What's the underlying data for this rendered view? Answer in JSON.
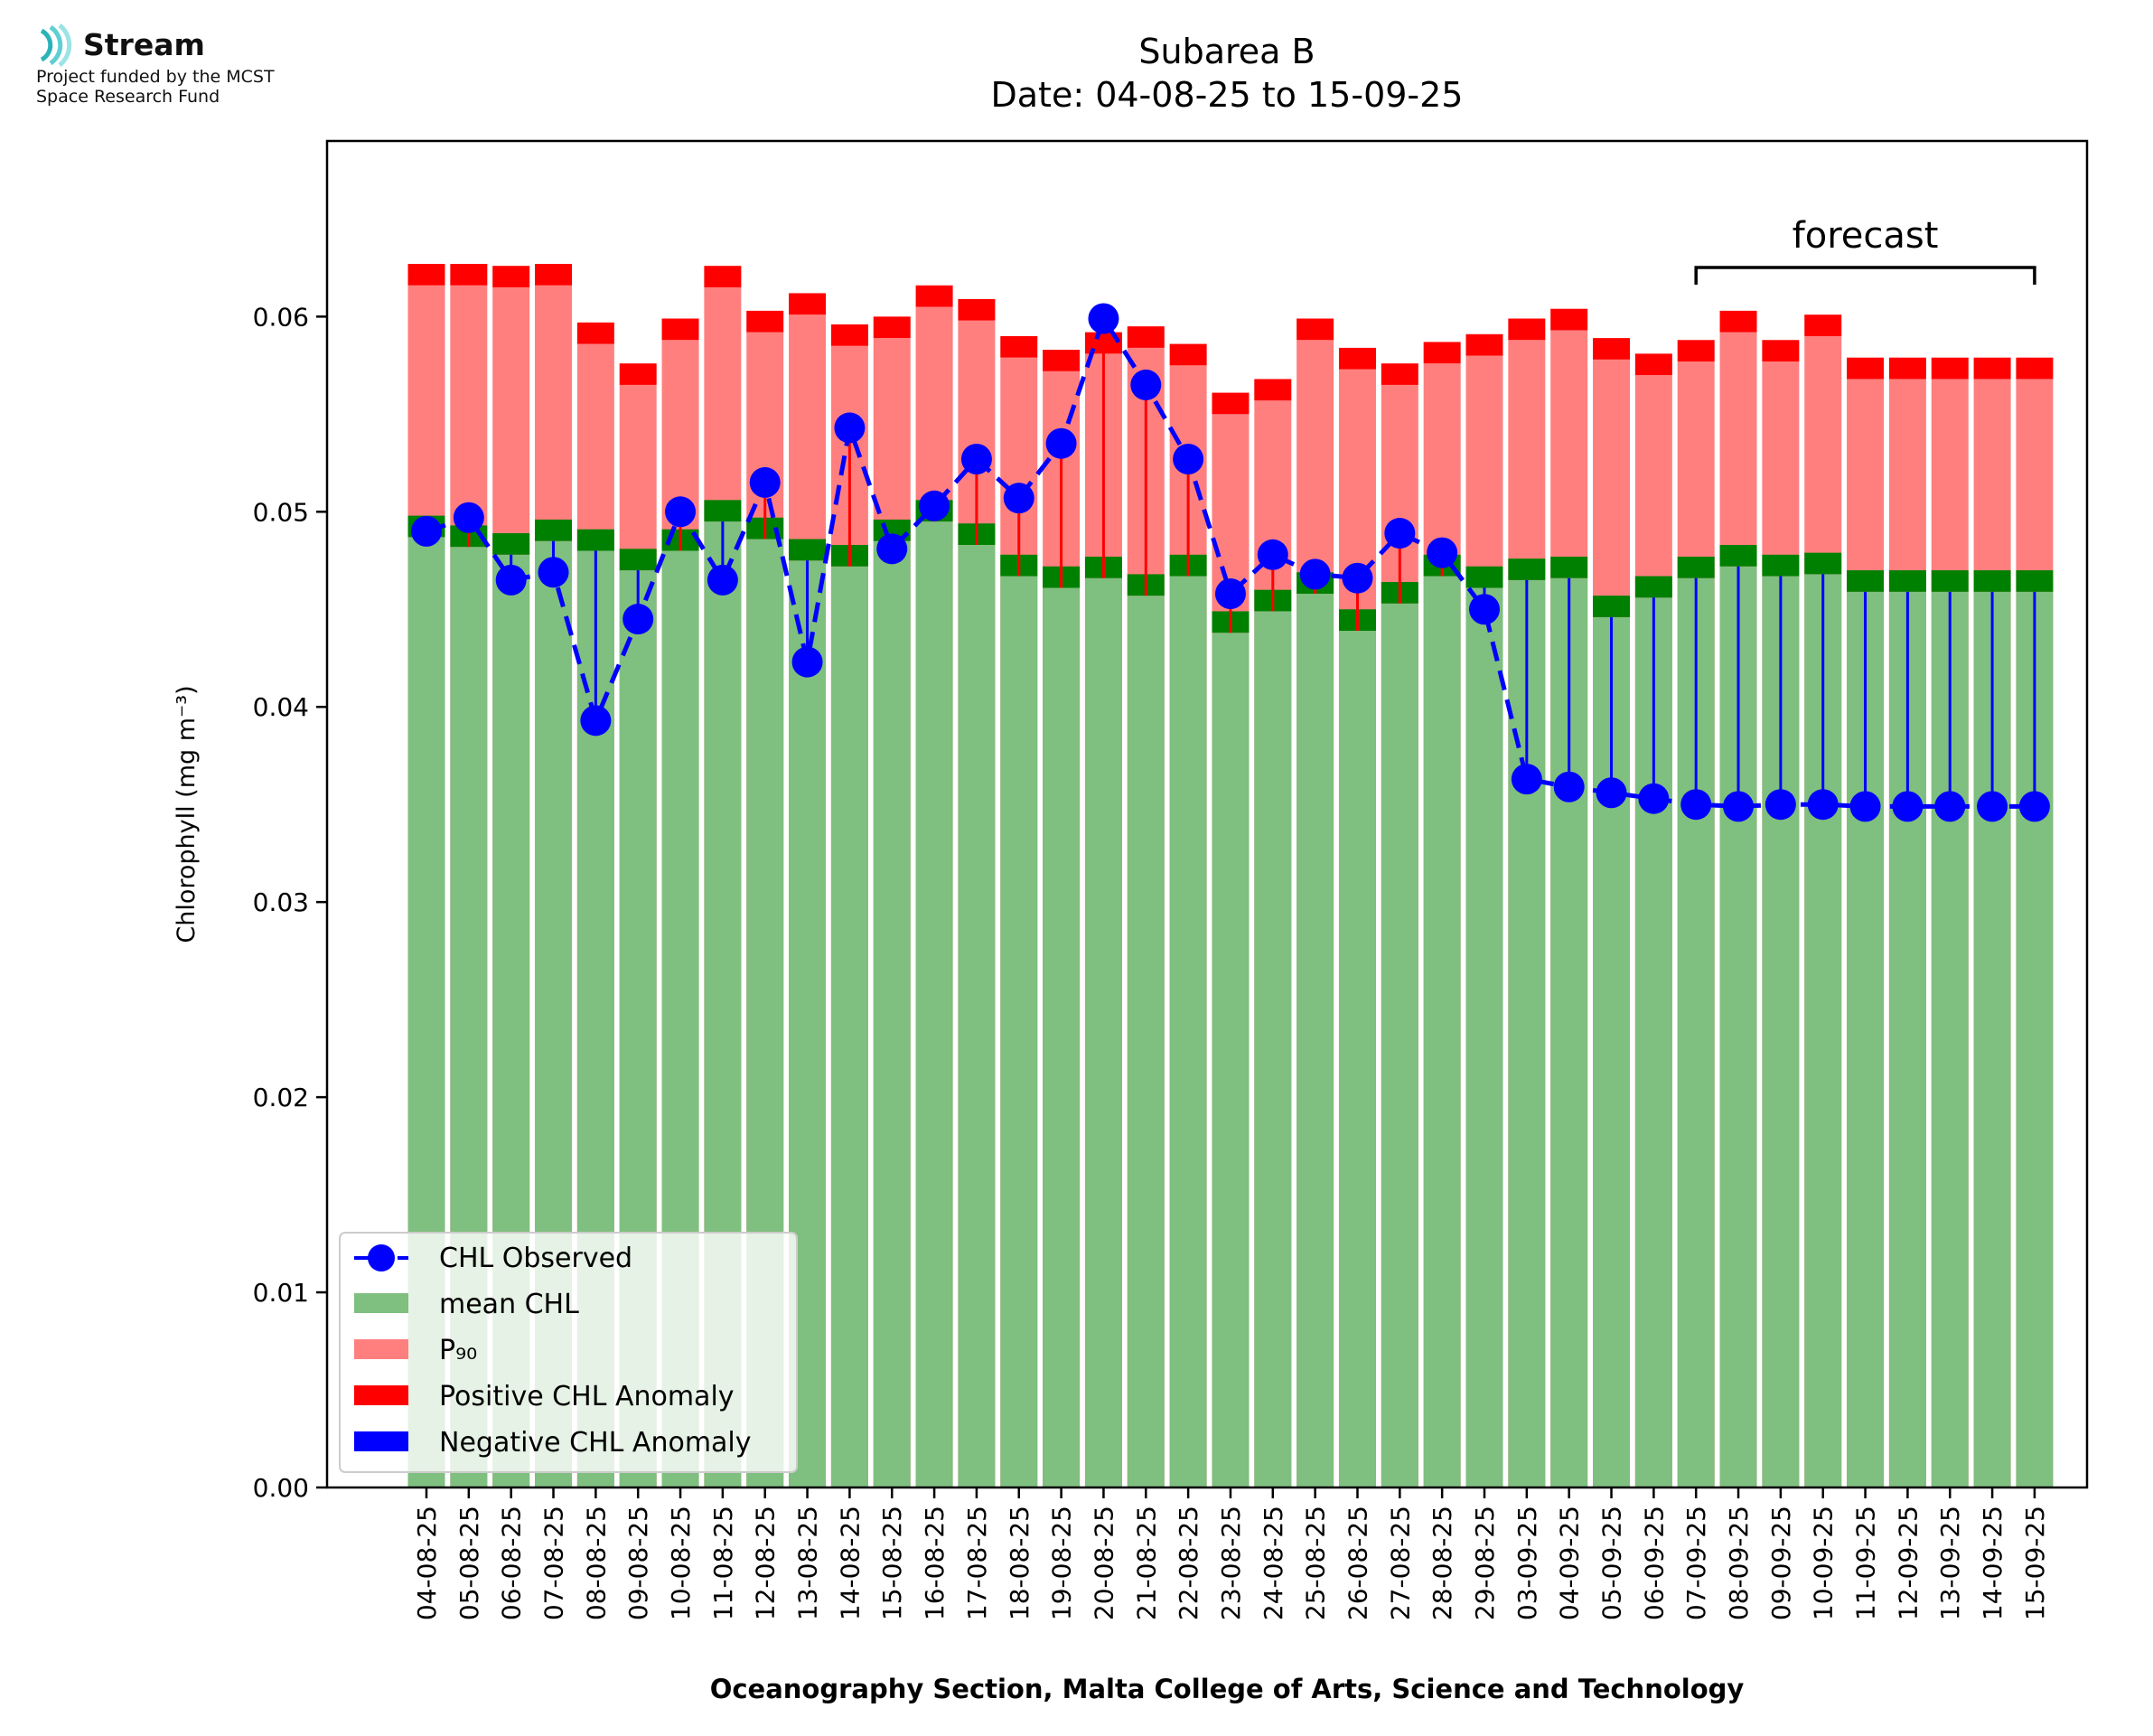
{
  "logo": {
    "name": "Stream",
    "subtitle_line1": "Project funded by the MCST",
    "subtitle_line2": "Space Research Fund"
  },
  "chart_data": {
    "type": "bar",
    "title": "Subarea B",
    "subtitle": "Date: 04-08-25 to 15-09-25",
    "xlabel": "Oceanography Section, Malta College of Arts, Science and Technology",
    "ylabel": "Chlorophyll (mg m⁻³)",
    "ylim": [
      0,
      0.069
    ],
    "yticks": [
      "0.00",
      "0.01",
      "0.02",
      "0.03",
      "0.04",
      "0.05",
      "0.06"
    ],
    "grid": false,
    "legend_position": "bottom-left",
    "forecast_label": "forecast",
    "forecast_range": [
      "07-09-25",
      "15-09-25"
    ],
    "categories": [
      "04-08-25",
      "05-08-25",
      "06-08-25",
      "07-08-25",
      "08-08-25",
      "09-08-25",
      "10-08-25",
      "11-08-25",
      "12-08-25",
      "13-08-25",
      "14-08-25",
      "15-08-25",
      "16-08-25",
      "17-08-25",
      "18-08-25",
      "19-08-25",
      "20-08-25",
      "21-08-25",
      "22-08-25",
      "23-08-25",
      "24-08-25",
      "25-08-25",
      "26-08-25",
      "27-08-25",
      "28-08-25",
      "29-08-25",
      "03-09-25",
      "04-09-25",
      "05-09-25",
      "06-09-25",
      "07-09-25",
      "08-09-25",
      "09-09-25",
      "10-09-25",
      "11-09-25",
      "12-09-25",
      "13-09-25",
      "14-09-25",
      "15-09-25"
    ],
    "series": [
      {
        "name": "CHL Observed",
        "color": "#0000ff",
        "style": "dashed-line-markers",
        "values": [
          0.049,
          0.0497,
          0.0465,
          0.0469,
          0.0393,
          0.0445,
          0.05,
          0.0465,
          0.0515,
          0.0423,
          0.0543,
          0.0481,
          0.0503,
          0.0527,
          0.0507,
          0.0535,
          0.0599,
          0.0565,
          0.0527,
          0.0458,
          0.0478,
          0.0468,
          0.0466,
          0.0489,
          0.0479,
          0.045,
          0.0363,
          0.0359,
          0.0356,
          0.0353,
          0.035,
          0.0349,
          0.035,
          0.035,
          0.0349,
          0.0349,
          0.0349,
          0.0349,
          0.0349
        ]
      },
      {
        "name": "mean CHL",
        "color": "#7fbf7f",
        "values": [
          0.0487,
          0.0482,
          0.0478,
          0.0485,
          0.048,
          0.047,
          0.048,
          0.0495,
          0.0486,
          0.0475,
          0.0472,
          0.0485,
          0.0495,
          0.0483,
          0.0467,
          0.0461,
          0.0466,
          0.0457,
          0.0467,
          0.0438,
          0.0449,
          0.0458,
          0.0439,
          0.0453,
          0.0467,
          0.0461,
          0.0465,
          0.0466,
          0.0446,
          0.0456,
          0.0466,
          0.0472,
          0.0467,
          0.0468,
          0.0459,
          0.0459,
          0.0459,
          0.0459,
          0.0459
        ]
      },
      {
        "name": "P₉₀",
        "color": "#ff7f7f",
        "values": [
          0.0616,
          0.0616,
          0.0615,
          0.0616,
          0.0586,
          0.0565,
          0.0588,
          0.0615,
          0.0592,
          0.0601,
          0.0585,
          0.0589,
          0.0605,
          0.0598,
          0.0579,
          0.0572,
          0.0581,
          0.0584,
          0.0575,
          0.055,
          0.0557,
          0.0588,
          0.0573,
          0.0565,
          0.0576,
          0.058,
          0.0588,
          0.0593,
          0.0578,
          0.057,
          0.0577,
          0.0592,
          0.0577,
          0.059,
          0.0568,
          0.0568,
          0.0568,
          0.0568,
          0.0568
        ]
      },
      {
        "name": "Positive CHL Anomaly",
        "color": "#ff0000"
      },
      {
        "name": "Negative CHL Anomaly",
        "color": "#0000ff"
      }
    ]
  }
}
